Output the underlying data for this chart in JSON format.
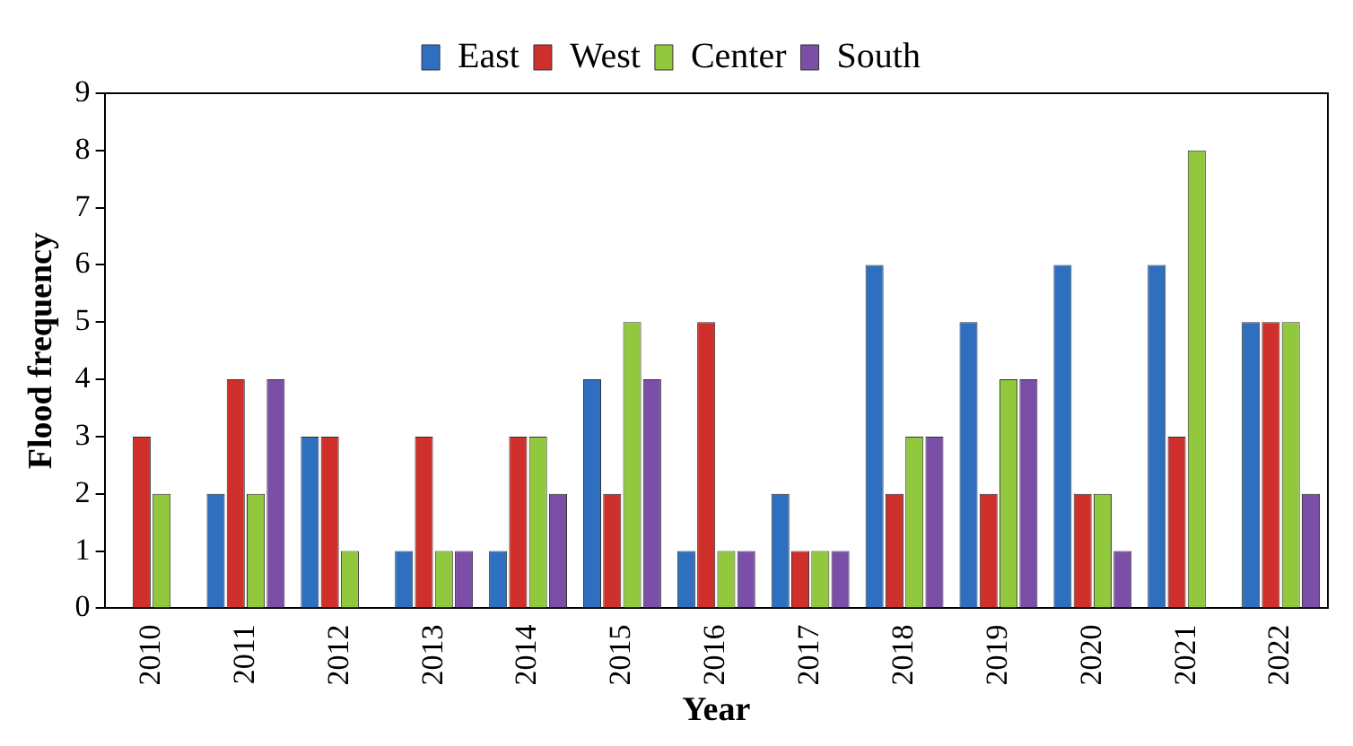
{
  "chart_data": {
    "type": "bar",
    "xlabel": "Year",
    "ylabel": "Flood frequency",
    "categories": [
      "2010",
      "2011",
      "2012",
      "2013",
      "2014",
      "2015",
      "2016",
      "2017",
      "2018",
      "2019",
      "2020",
      "2021",
      "2022"
    ],
    "series": [
      {
        "name": "East",
        "color": "#2e6fc0",
        "values": [
          0,
          2,
          3,
          1,
          1,
          4,
          1,
          2,
          6,
          5,
          6,
          6,
          5
        ]
      },
      {
        "name": "West",
        "color": "#d0302c",
        "values": [
          3,
          4,
          3,
          3,
          3,
          2,
          5,
          1,
          2,
          2,
          2,
          3,
          5
        ]
      },
      {
        "name": "Center",
        "color": "#92c83e",
        "values": [
          2,
          2,
          1,
          1,
          3,
          5,
          1,
          1,
          3,
          4,
          2,
          8,
          5
        ]
      },
      {
        "name": "South",
        "color": "#7b4fa8",
        "values": [
          0,
          4,
          0,
          1,
          2,
          4,
          1,
          1,
          3,
          4,
          1,
          0,
          2
        ]
      }
    ],
    "ylim": [
      0,
      9
    ],
    "yticks": [
      0,
      1,
      2,
      3,
      4,
      5,
      6,
      7,
      8,
      9
    ],
    "grid": false,
    "legend": "top"
  }
}
